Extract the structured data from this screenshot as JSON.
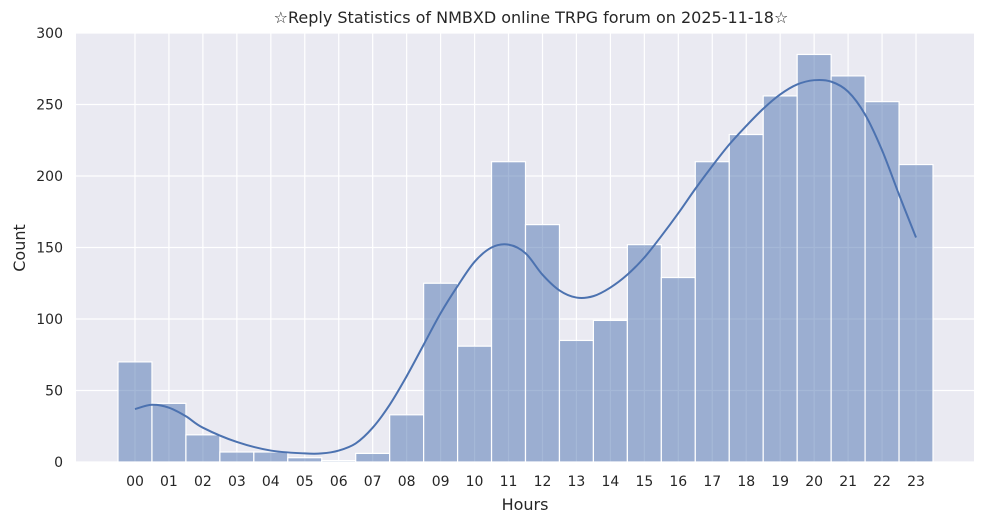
{
  "chart_data": {
    "type": "bar",
    "subtype": "histogram-with-kde",
    "title": "☆Reply Statistics of NMBXD online TRPG forum on 2025-11-18☆",
    "xlabel": "Hours",
    "ylabel": "Count",
    "categories": [
      "00",
      "01",
      "02",
      "03",
      "04",
      "05",
      "06",
      "07",
      "08",
      "09",
      "10",
      "11",
      "12",
      "13",
      "14",
      "15",
      "16",
      "17",
      "18",
      "19",
      "20",
      "21",
      "22",
      "23"
    ],
    "values": [
      70,
      41,
      19,
      7,
      7,
      3,
      1,
      6,
      33,
      125,
      81,
      210,
      166,
      85,
      99,
      152,
      129,
      210,
      229,
      256,
      285,
      270,
      252,
      208
    ],
    "kde": {
      "x": [
        0,
        0.5,
        1,
        1.5,
        2,
        3,
        4,
        5,
        5.5,
        6,
        6.5,
        7,
        7.5,
        8,
        8.5,
        9,
        9.5,
        10,
        10.5,
        11,
        11.5,
        12,
        12.5,
        13,
        13.5,
        14,
        14.5,
        15,
        15.5,
        16,
        16.5,
        17,
        17.5,
        18,
        18.5,
        19,
        19.5,
        20,
        20.5,
        21,
        21.5,
        22,
        22.5,
        23
      ],
      "y": [
        37,
        40,
        38,
        32,
        24,
        14,
        8,
        6,
        6,
        8,
        13,
        24,
        40,
        60,
        82,
        104,
        123,
        140,
        150,
        152,
        146,
        131,
        120,
        115,
        116,
        122,
        131,
        143,
        158,
        174,
        191,
        207,
        222,
        235,
        247,
        257,
        264,
        267,
        266,
        259,
        243,
        218,
        187,
        157
      ]
    },
    "ylim": [
      0,
      300
    ],
    "yticks": [
      0,
      50,
      100,
      150,
      200,
      250,
      300
    ],
    "grid": true,
    "colors": {
      "background": "#eaeaf2",
      "grid": "#ffffff",
      "bar_fill": "#4c72b0",
      "bar_opacity": 0.5,
      "kde_line": "#4c72b0"
    }
  }
}
